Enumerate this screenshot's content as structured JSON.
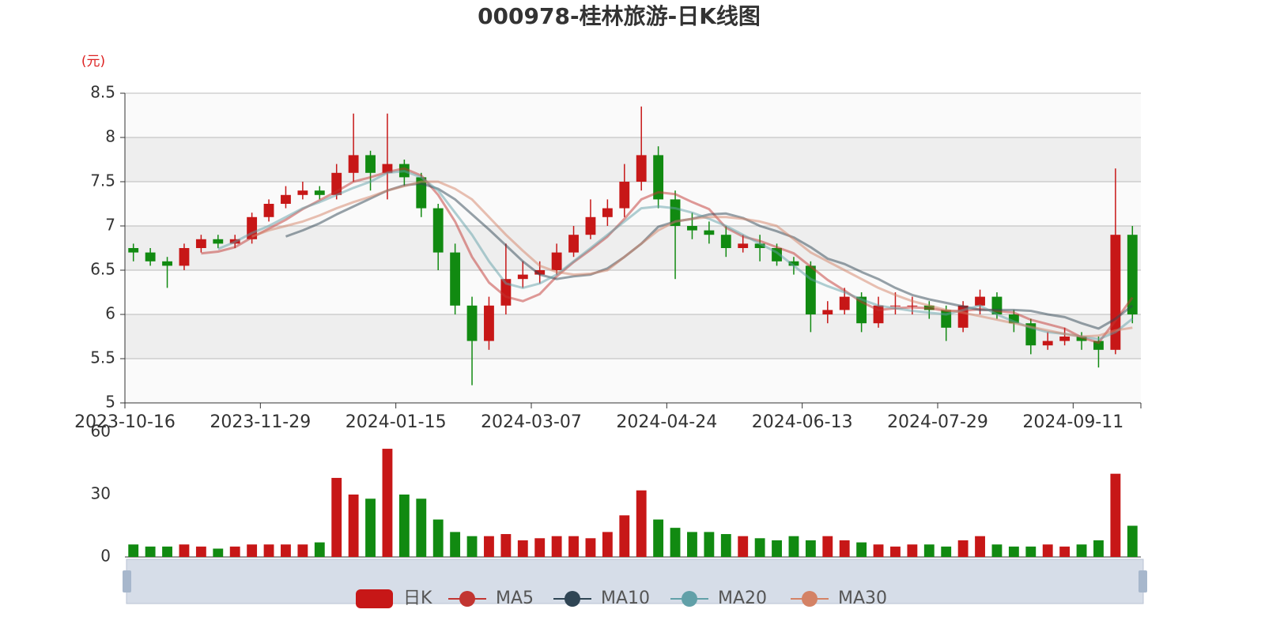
{
  "chart_data": [
    {
      "type": "candlestick",
      "title": "000978-桂林旅游-日K线图",
      "y_label": "(元)",
      "candle_name": "日K",
      "up_color": "#c71717",
      "down_color": "#118a11",
      "grid": true,
      "categories": [
        "2023-10-16",
        null,
        null,
        null,
        null,
        null,
        null,
        null,
        "2023-11-29",
        null,
        null,
        null,
        null,
        null,
        null,
        null,
        "2024-01-15",
        null,
        null,
        null,
        null,
        null,
        null,
        null,
        "2024-03-07",
        null,
        null,
        null,
        null,
        null,
        null,
        null,
        "2024-04-24",
        null,
        null,
        null,
        null,
        null,
        null,
        null,
        "2024-06-13",
        null,
        null,
        null,
        null,
        null,
        null,
        null,
        "2024-07-29",
        null,
        null,
        null,
        null,
        null,
        null,
        null,
        "2024-09-11",
        null,
        null,
        null
      ],
      "open": [
        6.75,
        6.7,
        6.6,
        6.55,
        6.75,
        6.85,
        6.8,
        6.85,
        7.1,
        7.25,
        7.35,
        7.4,
        7.35,
        7.6,
        7.8,
        7.6,
        7.7,
        7.55,
        7.2,
        6.7,
        6.1,
        5.7,
        6.1,
        6.4,
        6.45,
        6.5,
        6.7,
        6.9,
        7.1,
        7.2,
        7.5,
        7.8,
        7.3,
        7.0,
        6.95,
        6.9,
        6.75,
        6.8,
        6.75,
        6.6,
        6.55,
        6.0,
        6.05,
        6.2,
        5.9,
        6.1,
        6.1,
        6.1,
        6.05,
        5.85,
        6.1,
        6.2,
        6.0,
        5.9,
        5.65,
        5.7,
        5.75,
        5.7,
        5.6,
        6.9
      ],
      "close": [
        6.7,
        6.6,
        6.55,
        6.75,
        6.85,
        6.8,
        6.85,
        7.1,
        7.25,
        7.35,
        7.4,
        7.35,
        7.6,
        7.8,
        7.6,
        7.7,
        7.55,
        7.2,
        6.7,
        6.1,
        5.7,
        6.1,
        6.4,
        6.45,
        6.5,
        6.7,
        6.9,
        7.1,
        7.2,
        7.5,
        7.8,
        7.3,
        7.0,
        6.95,
        6.9,
        6.75,
        6.8,
        6.75,
        6.6,
        6.55,
        6.0,
        6.05,
        6.2,
        5.9,
        6.1,
        6.1,
        6.1,
        6.05,
        5.85,
        6.1,
        6.2,
        6.0,
        5.9,
        5.65,
        5.7,
        5.75,
        5.7,
        5.6,
        6.9,
        6.0
      ],
      "high": [
        6.8,
        6.75,
        6.65,
        6.8,
        6.9,
        6.9,
        6.9,
        7.15,
        7.3,
        7.45,
        7.5,
        7.45,
        7.7,
        8.27,
        7.85,
        8.27,
        7.75,
        7.6,
        7.25,
        6.8,
        6.2,
        6.2,
        6.8,
        6.6,
        6.6,
        6.8,
        7.0,
        7.3,
        7.3,
        7.7,
        8.35,
        7.9,
        7.4,
        7.15,
        7.05,
        7.0,
        6.9,
        6.9,
        6.8,
        6.65,
        6.6,
        6.15,
        6.3,
        6.25,
        6.2,
        6.25,
        6.2,
        6.15,
        6.1,
        6.15,
        6.28,
        6.25,
        6.05,
        5.95,
        5.8,
        5.85,
        5.8,
        5.75,
        7.65,
        7.0
      ],
      "low": [
        6.6,
        6.55,
        6.3,
        6.5,
        6.7,
        6.75,
        6.75,
        6.8,
        7.05,
        7.2,
        7.3,
        7.3,
        7.3,
        7.5,
        7.4,
        7.3,
        7.45,
        7.1,
        6.5,
        6.0,
        5.2,
        5.6,
        6.0,
        6.3,
        6.35,
        6.45,
        6.65,
        6.85,
        7.0,
        7.1,
        7.4,
        7.2,
        6.4,
        6.85,
        6.8,
        6.65,
        6.7,
        6.6,
        6.55,
        6.45,
        5.8,
        5.9,
        6.0,
        5.8,
        5.85,
        6.0,
        6.0,
        5.95,
        5.7,
        5.8,
        6.0,
        5.95,
        5.8,
        5.55,
        5.6,
        5.65,
        5.6,
        5.4,
        5.55,
        5.9
      ],
      "series": [
        {
          "name": "MA5",
          "color": "#c23531",
          "values": [
            null,
            null,
            null,
            null,
            6.69,
            6.71,
            6.76,
            6.87,
            6.97,
            7.07,
            7.19,
            7.29,
            7.39,
            7.5,
            7.55,
            7.61,
            7.65,
            7.57,
            7.35,
            7.05,
            6.65,
            6.36,
            6.2,
            6.15,
            6.23,
            6.43,
            6.59,
            6.73,
            6.88,
            7.08,
            7.3,
            7.38,
            7.36,
            7.27,
            7.19,
            6.98,
            6.88,
            6.83,
            6.76,
            6.69,
            6.54,
            6.39,
            6.27,
            6.14,
            6.05,
            6.07,
            6.08,
            6.07,
            6.04,
            6.04,
            6.06,
            6.04,
            6.02,
            5.94,
            5.89,
            5.84,
            5.74,
            5.68,
            5.93,
            6.19
          ]
        },
        {
          "name": "MA10",
          "color": "#2f4554",
          "values": [
            null,
            null,
            null,
            null,
            null,
            null,
            null,
            null,
            null,
            6.88,
            6.95,
            7.03,
            7.13,
            7.22,
            7.31,
            7.4,
            7.46,
            7.48,
            7.42,
            7.3,
            7.13,
            6.96,
            6.78,
            6.6,
            6.45,
            6.4,
            6.43,
            6.45,
            6.52,
            6.65,
            6.8,
            6.99,
            7.05,
            7.08,
            7.13,
            7.14,
            7.09,
            7.0,
            6.94,
            6.87,
            6.76,
            6.63,
            6.57,
            6.48,
            6.4,
            6.3,
            6.22,
            6.17,
            6.13,
            6.09,
            6.05,
            6.05,
            6.05,
            6.04,
            6.0,
            5.97,
            5.9,
            5.84,
            5.95,
            6.1
          ]
        },
        {
          "name": "MA20",
          "color": "#61a0a8",
          "values": [
            null,
            null,
            null,
            null,
            null,
            6.74,
            6.82,
            6.92,
            7.0,
            7.1,
            7.2,
            7.27,
            7.35,
            7.43,
            7.5,
            7.6,
            7.62,
            7.55,
            7.4,
            7.15,
            6.9,
            6.6,
            6.35,
            6.3,
            6.35,
            6.45,
            6.6,
            6.75,
            6.9,
            7.05,
            7.2,
            7.22,
            7.2,
            7.15,
            7.08,
            7.0,
            6.9,
            6.8,
            6.7,
            6.55,
            6.4,
            6.32,
            6.25,
            6.17,
            6.1,
            6.07,
            6.04,
            6.02,
            6.0,
            6.05,
            6.1,
            6.0,
            5.92,
            5.85,
            5.8,
            5.78,
            5.75,
            5.72,
            5.8,
            5.95
          ]
        },
        {
          "name": "MA30",
          "color": "#d48265",
          "values": [
            null,
            null,
            null,
            null,
            null,
            null,
            null,
            6.88,
            6.95,
            7.0,
            7.05,
            7.12,
            7.2,
            7.27,
            7.33,
            7.4,
            7.45,
            7.5,
            7.5,
            7.42,
            7.3,
            7.1,
            6.9,
            6.72,
            6.55,
            6.48,
            6.45,
            6.46,
            6.5,
            6.65,
            6.8,
            6.95,
            7.05,
            7.08,
            7.1,
            7.1,
            7.08,
            7.05,
            7.0,
            6.85,
            6.7,
            6.6,
            6.5,
            6.4,
            6.3,
            6.22,
            6.15,
            6.1,
            6.05,
            6.02,
            5.98,
            5.94,
            5.9,
            5.86,
            5.82,
            5.78,
            5.75,
            5.76,
            5.82,
            5.85
          ]
        }
      ],
      "ylim": [
        5,
        8.5
      ],
      "yticks": [
        5,
        5.5,
        6,
        6.5,
        7,
        7.5,
        8,
        8.5
      ]
    },
    {
      "type": "bar",
      "values": [
        6,
        5,
        5,
        6,
        5,
        4,
        5,
        6,
        6,
        6,
        6,
        7,
        38,
        30,
        28,
        52,
        30,
        28,
        18,
        12,
        10,
        10,
        11,
        8,
        9,
        10,
        10,
        9,
        12,
        20,
        32,
        18,
        14,
        12,
        12,
        11,
        10,
        9,
        8,
        10,
        8,
        10,
        8,
        7,
        6,
        5,
        6,
        6,
        5,
        8,
        10,
        6,
        5,
        5,
        6,
        5,
        6,
        8,
        40,
        15
      ],
      "ylim": [
        0,
        60
      ],
      "yticks": [
        0,
        30,
        60
      ]
    }
  ]
}
